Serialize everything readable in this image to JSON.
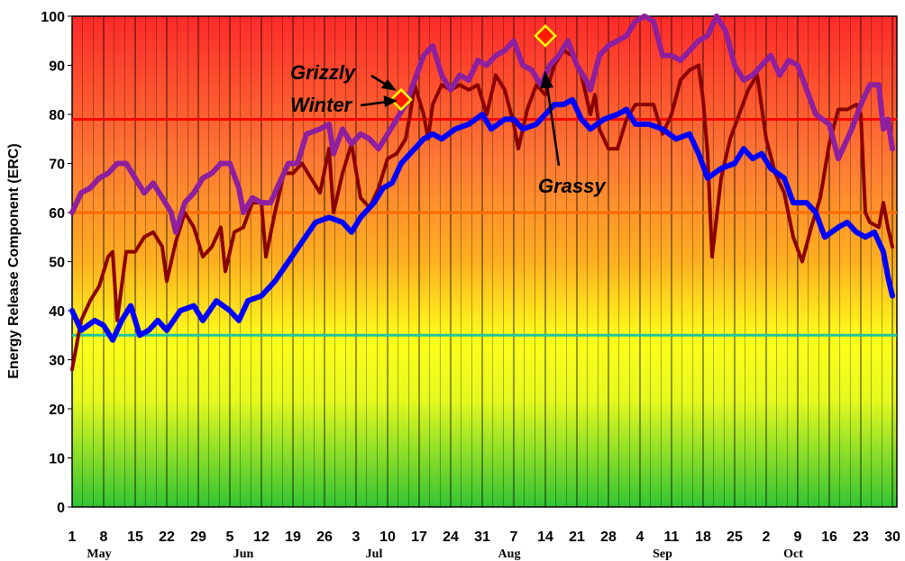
{
  "chart_data": {
    "type": "line",
    "y_label": "Energy Release Component (ERC)",
    "xlim": [
      0,
      182
    ],
    "ylim": [
      0,
      100
    ],
    "yticks": [
      0,
      10,
      20,
      30,
      40,
      50,
      60,
      70,
      80,
      90,
      100
    ],
    "xticks": [
      {
        "value": 0,
        "label": "1"
      },
      {
        "value": 7,
        "label": "8"
      },
      {
        "value": 14,
        "label": "15"
      },
      {
        "value": 21,
        "label": "22"
      },
      {
        "value": 28,
        "label": "29"
      },
      {
        "value": 35,
        "label": "5"
      },
      {
        "value": 42,
        "label": "12"
      },
      {
        "value": 49,
        "label": "19"
      },
      {
        "value": 56,
        "label": "26"
      },
      {
        "value": 63,
        "label": "3"
      },
      {
        "value": 70,
        "label": "10"
      },
      {
        "value": 77,
        "label": "17"
      },
      {
        "value": 84,
        "label": "24"
      },
      {
        "value": 91,
        "label": "31"
      },
      {
        "value": 98,
        "label": "7"
      },
      {
        "value": 105,
        "label": "14"
      },
      {
        "value": 112,
        "label": "21"
      },
      {
        "value": 119,
        "label": "28"
      },
      {
        "value": 126,
        "label": "4"
      },
      {
        "value": 133,
        "label": "11"
      },
      {
        "value": 140,
        "label": "18"
      },
      {
        "value": 147,
        "label": "25"
      },
      {
        "value": 154,
        "label": "2"
      },
      {
        "value": 161,
        "label": "9"
      },
      {
        "value": 168,
        "label": "16"
      },
      {
        "value": 175,
        "label": "23"
      },
      {
        "value": 182,
        "label": "30"
      }
    ],
    "month_labels": [
      {
        "value": 6,
        "label": "May"
      },
      {
        "value": 38,
        "label": "Jun"
      },
      {
        "value": 67,
        "label": "Jul"
      },
      {
        "value": 97,
        "label": "Aug"
      },
      {
        "value": 131,
        "label": "Sep"
      },
      {
        "value": 160,
        "label": "Oct"
      }
    ],
    "grid": true,
    "hlines": [
      {
        "value": 79,
        "color": "#ff0000"
      },
      {
        "value": 60,
        "color": "#ff6a00"
      },
      {
        "value": 35,
        "color": "#1fc4a0"
      }
    ],
    "series": [
      {
        "color": "#8b0000",
        "width": 4,
        "x": [
          0,
          2,
          4,
          6,
          8,
          9,
          10,
          12,
          14,
          16,
          18,
          20,
          21,
          23,
          25,
          27,
          29,
          31,
          33,
          34,
          36,
          38,
          40,
          42,
          43,
          45,
          47,
          49,
          51,
          53,
          55,
          57,
          58,
          60,
          62,
          64,
          66,
          68,
          70,
          72,
          74,
          75,
          76,
          78,
          79,
          80,
          82,
          84,
          86,
          88,
          90,
          92,
          94,
          96,
          98,
          99,
          101,
          103,
          105,
          107,
          109,
          111,
          113,
          115,
          116,
          117,
          119,
          121,
          123,
          125,
          127,
          129,
          131,
          133,
          135,
          137,
          139,
          140,
          141,
          142,
          144,
          146,
          148,
          150,
          152,
          154,
          156,
          158,
          160,
          162,
          164,
          166,
          168,
          170,
          172,
          174,
          175,
          176,
          177,
          179,
          180,
          181,
          182
        ],
        "values": [
          28,
          38,
          42,
          45,
          51,
          52,
          38,
          52,
          52,
          55,
          56,
          53,
          46,
          54,
          60,
          57,
          51,
          53,
          57,
          48,
          56,
          57,
          62,
          62,
          51,
          60,
          68,
          68,
          70,
          67,
          64,
          73,
          60,
          68,
          74,
          63,
          61,
          65,
          71,
          72,
          75,
          80,
          86,
          80,
          75,
          82,
          86,
          85,
          86,
          85,
          86,
          80,
          88,
          85,
          78,
          73,
          81,
          86,
          84,
          90,
          93,
          92,
          88,
          80,
          84,
          77,
          73,
          73,
          79,
          82,
          82,
          82,
          76,
          80,
          87,
          89,
          90,
          83,
          72,
          51,
          67,
          75,
          80,
          85,
          88,
          75,
          68,
          64,
          55,
          50,
          57,
          63,
          74,
          81,
          81,
          82,
          80,
          60,
          58,
          57,
          62,
          57,
          53
        ]
      },
      {
        "color": "#8e1f9e",
        "width": 6,
        "x": [
          0,
          2,
          4,
          6,
          8,
          10,
          12,
          14,
          16,
          18,
          20,
          22,
          23,
          25,
          27,
          29,
          31,
          33,
          35,
          37,
          38,
          40,
          42,
          44,
          46,
          48,
          50,
          52,
          55,
          57,
          58,
          60,
          62,
          64,
          66,
          68,
          70,
          72,
          74,
          76,
          78,
          80,
          82,
          84,
          86,
          88,
          90,
          92,
          94,
          96,
          98,
          100,
          102,
          104,
          106,
          108,
          110,
          112,
          114,
          115,
          117,
          119,
          121,
          123,
          125,
          127,
          129,
          131,
          133,
          135,
          137,
          139,
          141,
          143,
          145,
          147,
          149,
          151,
          153,
          155,
          157,
          159,
          161,
          163,
          165,
          168,
          170,
          173,
          175,
          177,
          179,
          180,
          181,
          182
        ],
        "values": [
          60,
          64,
          65,
          67,
          68,
          70,
          70,
          67,
          64,
          66,
          63,
          60,
          56,
          62,
          64,
          67,
          68,
          70,
          70,
          65,
          60,
          63,
          62,
          62,
          66,
          70,
          70,
          76,
          77,
          78,
          72,
          77,
          74,
          76,
          75,
          73,
          76,
          79,
          82,
          87,
          92,
          94,
          88,
          85,
          88,
          87,
          91,
          90,
          92,
          93,
          95,
          90,
          89,
          86,
          90,
          92,
          95,
          90,
          87,
          85,
          92,
          94,
          95,
          96,
          99,
          100,
          99,
          92,
          92,
          91,
          93,
          95,
          96,
          100,
          97,
          90,
          87,
          88,
          90,
          92,
          88,
          91,
          90,
          85,
          80,
          78,
          71,
          77,
          82,
          86,
          86,
          77,
          79,
          73
        ]
      },
      {
        "color": "#0000ff",
        "width": 6,
        "x": [
          0,
          2,
          5,
          7,
          9,
          11,
          13,
          15,
          17,
          19,
          21,
          24,
          27,
          29,
          32,
          35,
          37,
          39,
          42,
          45,
          48,
          51,
          54,
          57,
          60,
          62,
          64,
          67,
          69,
          71,
          73,
          76,
          78,
          80,
          82,
          85,
          88,
          91,
          93,
          96,
          98,
          100,
          103,
          105,
          107,
          109,
          111,
          113,
          115,
          118,
          121,
          123,
          125,
          128,
          131,
          134,
          137,
          139,
          141,
          144,
          147,
          149,
          151,
          153,
          155,
          158,
          160,
          163,
          165,
          167,
          170,
          172,
          174,
          176,
          178,
          180,
          181,
          182
        ],
        "values": [
          40,
          36,
          38,
          37,
          34,
          38,
          41,
          35,
          36,
          38,
          36,
          40,
          41,
          38,
          42,
          40,
          38,
          42,
          43,
          46,
          50,
          54,
          58,
          59,
          58,
          56,
          59,
          62,
          65,
          66,
          70,
          73,
          75,
          76,
          75,
          77,
          78,
          80,
          77,
          79,
          79,
          77,
          78,
          80,
          82,
          82,
          83,
          79,
          77,
          79,
          80,
          81,
          78,
          78,
          77,
          75,
          76,
          72,
          67,
          69,
          70,
          73,
          71,
          72,
          69,
          67,
          62,
          62,
          60,
          55,
          57,
          58,
          56,
          55,
          56,
          52,
          47,
          43
        ]
      }
    ],
    "markers": [
      {
        "x": 73,
        "y": 83
      },
      {
        "x": 105,
        "y": 96
      }
    ],
    "annotations": [
      "Grizzly",
      "Winter",
      "Grassy"
    ]
  }
}
